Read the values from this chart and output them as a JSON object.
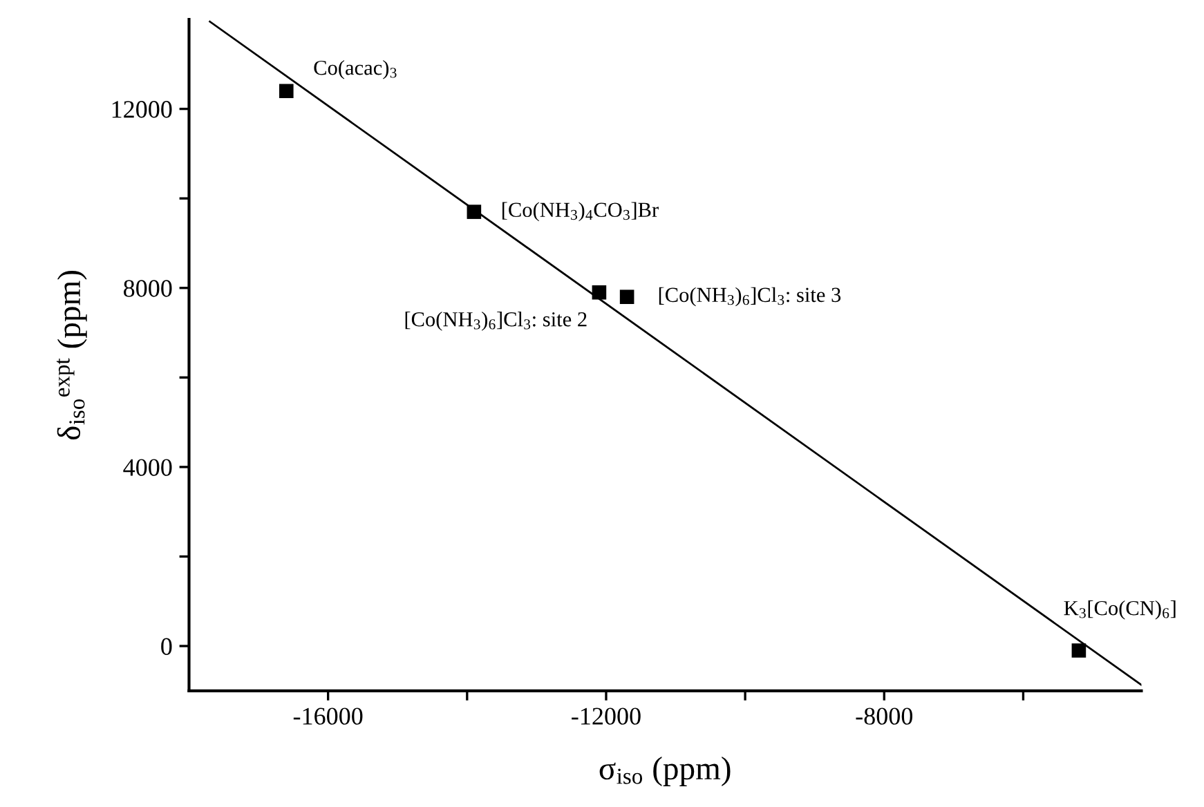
{
  "chart_data": {
    "type": "scatter",
    "xlabel": "σ$_{iso}$ (ppm)",
    "ylabel": "δ$_{iso}$$^{expt}$ (ppm)",
    "x": [
      -16600,
      -13900,
      -12100,
      -11700,
      -5200
    ],
    "series": [
      {
        "color": "#000000",
        "marker": "square",
        "values": [
          12400,
          9700,
          7900,
          7800,
          -100
        ]
      },
      {
        "type": "line",
        "color": "#000000",
        "marker": "none",
        "line_style": "solid",
        "x": [
          -17700,
          -4300
        ],
        "values": [
          13950,
          -870
        ]
      }
    ],
    "annotations": [
      {
        "text": "Co(acac)$_{3}$",
        "x": -16600,
        "y": 12400
      },
      {
        "text": "[Co(NH$_{3}$)$_{4}$CO$_{3}$]Br",
        "x": -13900,
        "y": 9700
      },
      {
        "text": "[Co(NH$_{3}$)$_{6}$]Cl$_{3}$: site 2",
        "x": -12100,
        "y": 7900
      },
      {
        "text": "[Co(NH$_{3}$)$_{6}$]Cl$_{3}$: site 3",
        "x": -11700,
        "y": 7800
      },
      {
        "text": "K$_{3}$[Co(CN)$_{6}$]",
        "x": -5200,
        "y": -100
      }
    ],
    "xlim": [
      -18000,
      -4300
    ],
    "ylim": [
      -1000,
      14000
    ],
    "xticks": [
      -16000,
      {
        "value": -14000,
        "label": null
      },
      -12000,
      {
        "value": -10000,
        "label": null
      },
      -8000,
      {
        "value": -6000,
        "label": null
      }
    ],
    "yticks": [
      0,
      {
        "value": 2000,
        "label": null
      },
      4000,
      {
        "value": 6000,
        "label": null
      },
      8000,
      {
        "value": 10000,
        "label": null
      },
      12000
    ],
    "grid": false,
    "legend": false
  }
}
